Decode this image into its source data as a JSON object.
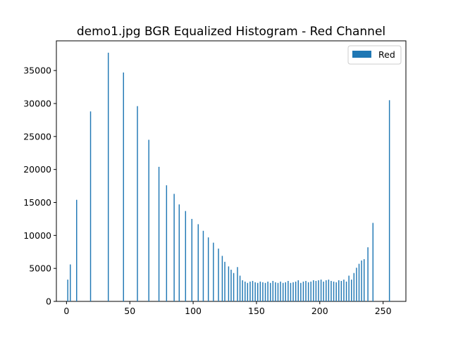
{
  "chart_data": {
    "type": "bar",
    "title": "demo1.jpg BGR Equalized Histogram - Red Channel",
    "xlabel": "",
    "ylabel": "",
    "xlim": [
      -8,
      268
    ],
    "ylim": [
      0,
      39500
    ],
    "xticks": [
      0,
      50,
      100,
      150,
      200,
      250
    ],
    "yticks": [
      0,
      5000,
      10000,
      15000,
      20000,
      25000,
      30000,
      35000
    ],
    "grid": false,
    "legend_position": "top-right",
    "bar_color": "#1f77b4",
    "series": [
      {
        "name": "Red",
        "x": [
          1,
          3,
          8,
          19,
          33,
          45,
          56,
          65,
          73,
          79,
          85,
          89,
          94,
          99,
          104,
          108,
          112,
          116,
          120,
          123,
          125,
          128,
          130,
          132,
          135,
          137,
          139,
          141,
          143,
          145,
          147,
          149,
          151,
          153,
          155,
          157,
          159,
          161,
          163,
          165,
          167,
          169,
          171,
          173,
          175,
          177,
          179,
          181,
          183,
          185,
          187,
          189,
          191,
          193,
          195,
          197,
          199,
          201,
          203,
          205,
          207,
          209,
          211,
          213,
          215,
          217,
          219,
          221,
          223,
          225,
          227,
          229,
          231,
          233,
          235,
          238,
          242,
          255
        ],
        "values": [
          3300,
          5600,
          15400,
          28800,
          37700,
          34700,
          29600,
          24500,
          20400,
          17600,
          16300,
          14700,
          13700,
          12500,
          11700,
          10700,
          9700,
          8900,
          8000,
          6900,
          6000,
          5300,
          4800,
          4300,
          5200,
          3900,
          3200,
          3000,
          2800,
          3000,
          3100,
          2900,
          2800,
          3000,
          2900,
          2800,
          3000,
          2800,
          3100,
          2900,
          2800,
          3000,
          2800,
          2900,
          3100,
          2800,
          2900,
          3000,
          3200,
          2800,
          3000,
          3100,
          2900,
          3000,
          3200,
          3100,
          3200,
          3300,
          3000,
          3200,
          3300,
          3100,
          3000,
          2900,
          3200,
          3100,
          3300,
          3000,
          3900,
          3300,
          4300,
          5100,
          5700,
          6200,
          6400,
          8200,
          11900,
          30500
        ]
      }
    ]
  }
}
